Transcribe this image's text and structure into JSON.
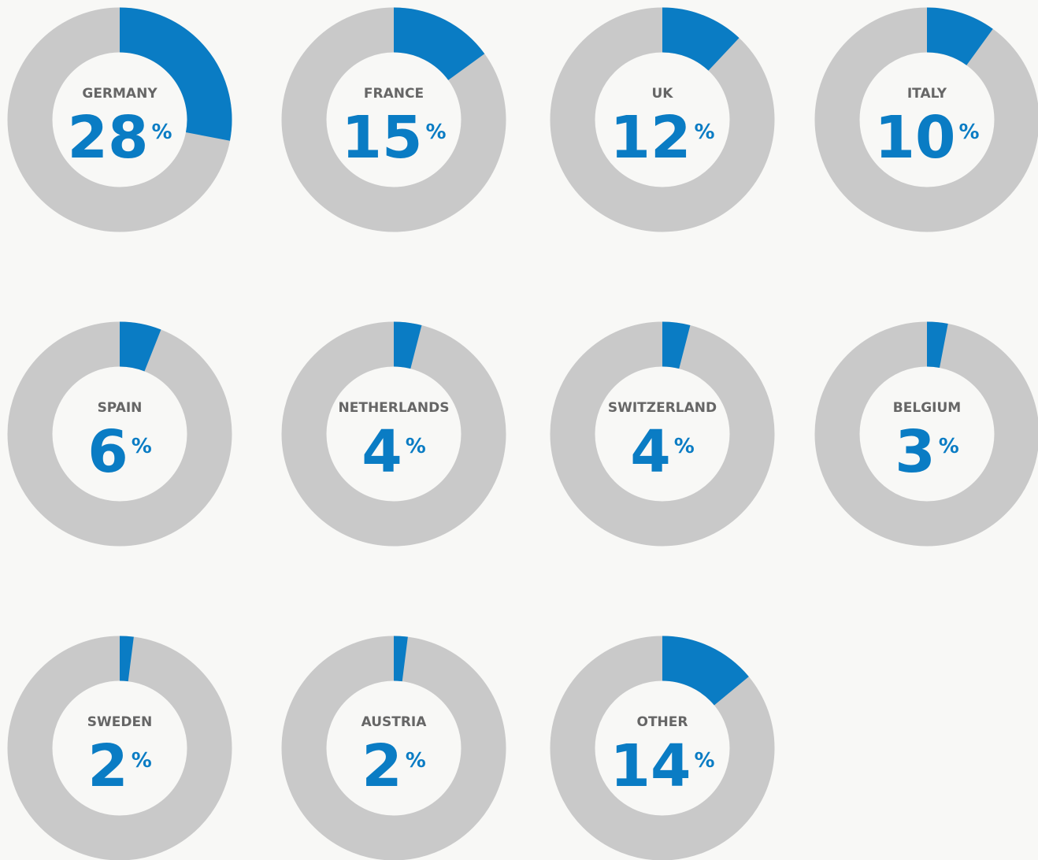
{
  "chart_data": {
    "type": "donut",
    "categories": [
      "GERMANY",
      "FRANCE",
      "UK",
      "ITALY",
      "SPAIN",
      "NETHERLANDS",
      "SWITZERLAND",
      "BELGIUM",
      "SWEDEN",
      "AUSTRIA",
      "OTHER"
    ],
    "values": [
      28,
      15,
      12,
      10,
      6,
      4,
      4,
      3,
      2,
      2,
      14
    ],
    "unit": "%",
    "color": "#0a7cc4",
    "track_color": "#c9c9c9"
  }
}
